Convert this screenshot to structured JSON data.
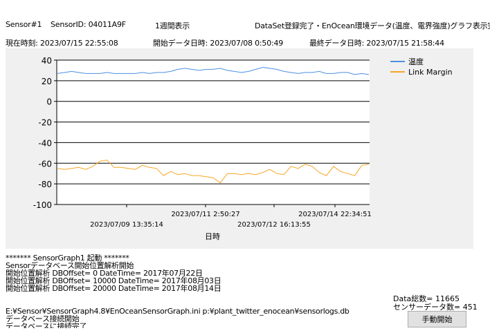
{
  "header": {
    "sensor": "Sensor#1",
    "sensor_id": "SensorID: 04011A9F",
    "period": "1週間表示",
    "status": "DataSet登録完了・EnOcean環境データ(温度、電界強度)グラフ表示完",
    "current_time": "現在時刻: 2023/07/15 22:55:08",
    "start_data_time": "開始データ日時: 2023/07/08 0:50:49",
    "last_data_time": "最終データ日時: 2023/07/15 21:58:44"
  },
  "chart_data": {
    "type": "line",
    "xlabel": "日時",
    "ylim": [
      -100,
      40
    ],
    "yticks": [
      "40",
      "20",
      "0",
      "-20",
      "-40",
      "-60",
      "-80",
      "-100"
    ],
    "ytick_values": [
      40,
      20,
      0,
      -20,
      -40,
      -60,
      -80,
      -100
    ],
    "xtick_labels_top": [
      "2023/07/11 2:50:27",
      "2023/07/14 22:34:51"
    ],
    "xtick_labels_bottom": [
      "2023/07/09 13:35:14",
      "2023/07/12 16:13:55"
    ],
    "legend_position": "top-right",
    "grid": "horizontal",
    "series": [
      {
        "name": "温度",
        "color": "#4a90e2",
        "values": [
          27,
          28,
          29,
          28,
          27,
          27,
          27,
          28,
          27,
          27,
          27,
          27,
          28,
          27,
          28,
          28,
          29,
          31,
          32,
          31,
          30,
          31,
          31,
          32,
          30,
          29,
          28,
          29,
          31,
          33,
          32,
          31,
          29,
          28,
          27,
          28,
          28,
          29,
          27,
          27,
          28,
          28,
          26,
          27,
          26
        ]
      },
      {
        "name": "Link Margin",
        "color": "#f5a623",
        "values": [
          -65,
          -66,
          -65,
          -64,
          -66,
          -63,
          -58,
          -57,
          -64,
          -64,
          -65,
          -66,
          -62,
          -64,
          -65,
          -72,
          -68,
          -71,
          -70,
          -72,
          -72,
          -73,
          -74,
          -79,
          -70,
          -70,
          -71,
          -70,
          -71,
          -69,
          -66,
          -70,
          -71,
          -63,
          -65,
          -61,
          -63,
          -69,
          -72,
          -63,
          -68,
          -70,
          -72,
          -62,
          -61
        ]
      }
    ]
  },
  "log_top": [
    "******* SensorGraph1 起動 *******",
    "Sensorデータベース開始位置解析開始",
    "  開始位置解析   DBOffset= 0 DateTime= 2017年07月22日",
    "  開始位置解析   DBOffset= 10000 DateTime= 2017年08月03日",
    "  開始位置解析   DBOffset= 20000 DateTime= 2017年08月14日"
  ],
  "log_bottom": [
    "E:¥Sensor¥SensorGraph4.8¥EnOceanSensorGraph.ini p:¥plant_twitter_enocean¥sensorlogs.db",
    "データベース接続開始",
    "データベースに接続完了"
  ],
  "stats": {
    "data_total": "Data総数= 11665",
    "sensor_count": "センサーデータ数= 451"
  },
  "buttons": {
    "manual_start": "手動開始"
  }
}
